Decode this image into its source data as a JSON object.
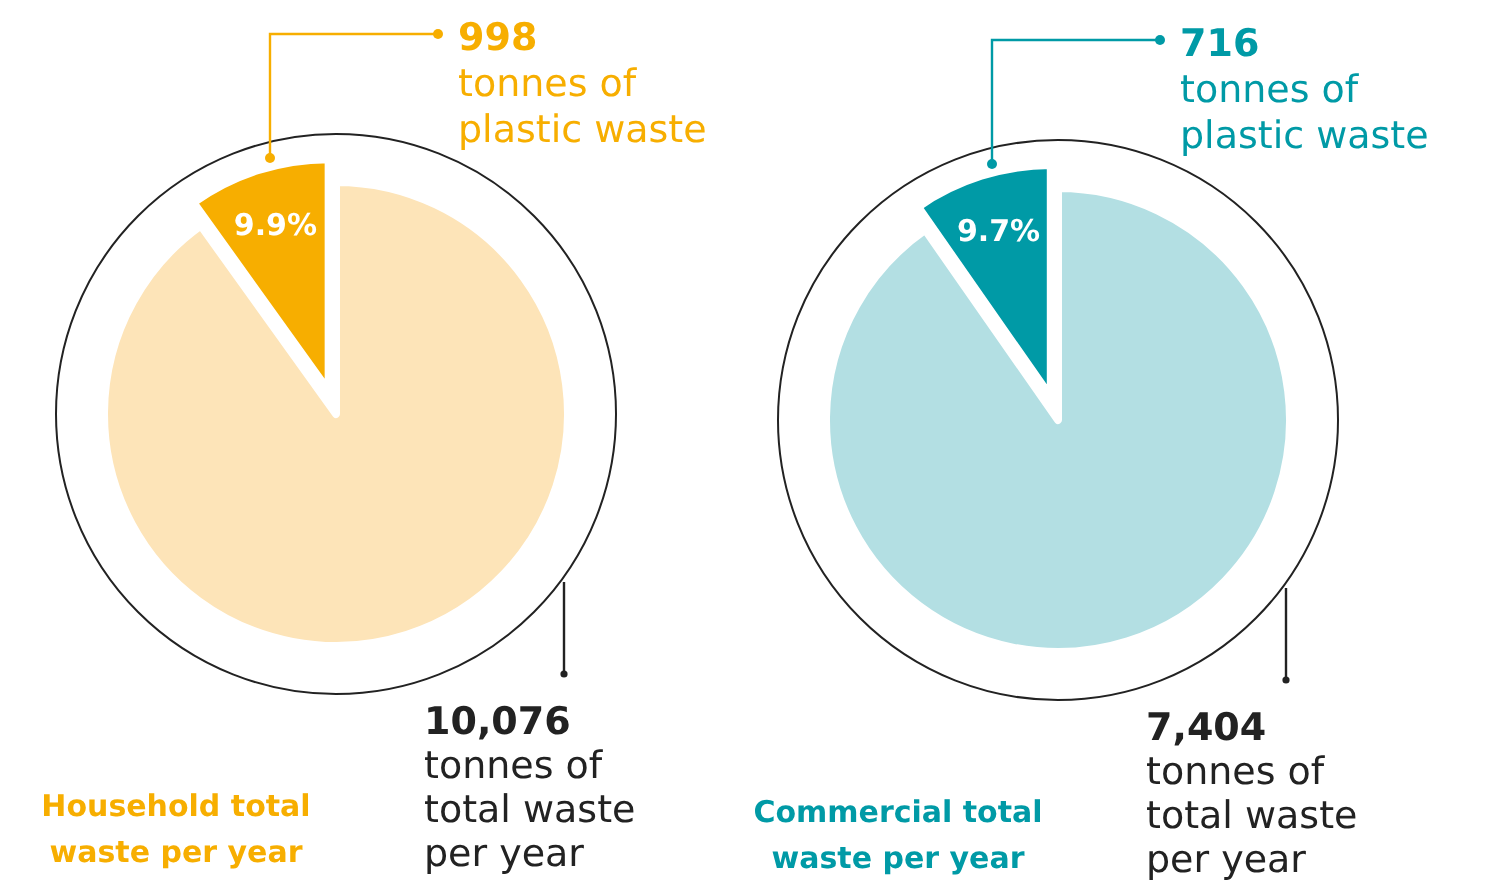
{
  "chart_data": [
    {
      "type": "pie",
      "title": "Household total waste per year",
      "categories": [
        null,
        null
      ],
      "values": [
        9.9,
        90.1
      ],
      "colors": [
        "#f7ae00",
        "#fde4b8"
      ],
      "value_labels": [
        "9.9%",
        null
      ],
      "annotations": [
        "998\ntonnes of\nplastic waste",
        "10,076\ntonnes of\ntotal waste\nper year"
      ]
    },
    {
      "type": "pie",
      "title": "Commercial total waste per year",
      "categories": [
        null,
        null
      ],
      "values": [
        9.7,
        90.3
      ],
      "colors": [
        "#009aa6",
        "#b3dfe3"
      ],
      "value_labels": [
        "9.7%",
        null
      ],
      "annotations": [
        "716\ntonnes of\nplastic waste",
        "7,404\ntonnes of\ntotal waste\nper year"
      ]
    }
  ]
}
